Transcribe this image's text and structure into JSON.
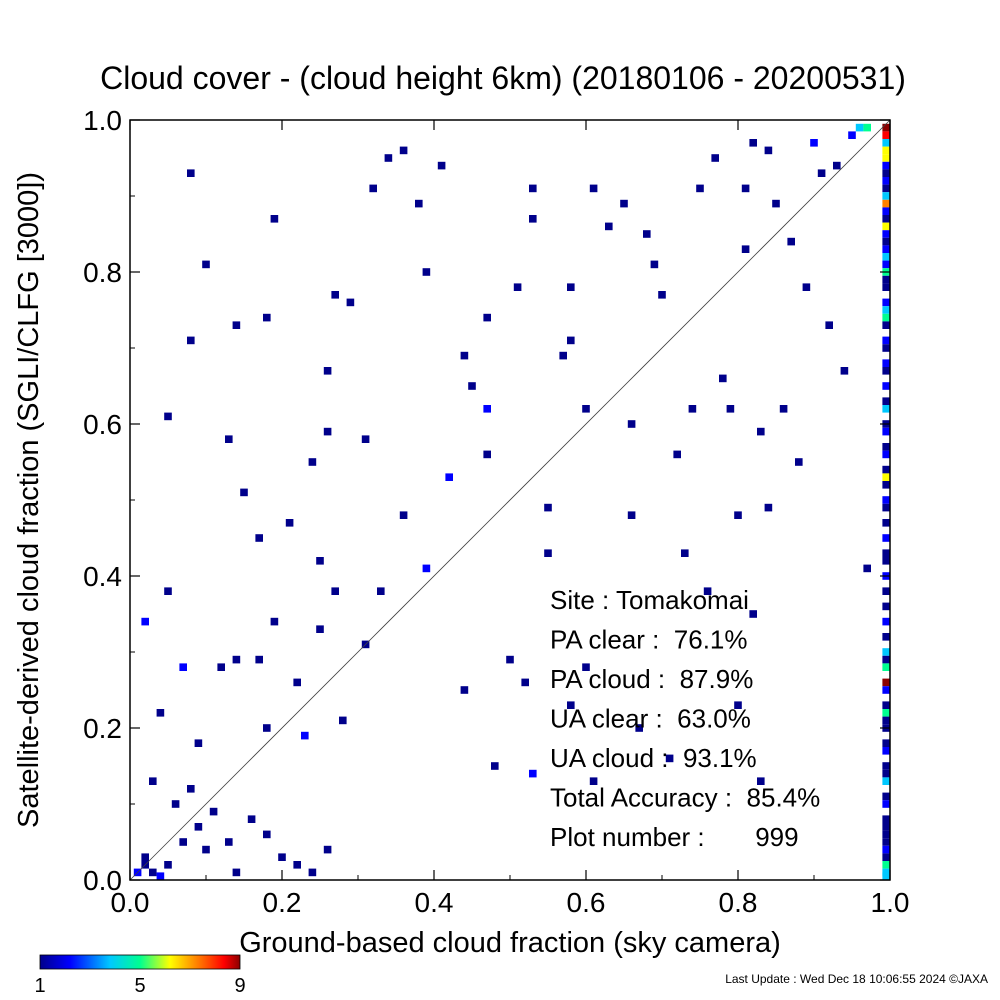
{
  "chart_data": {
    "type": "heatmap",
    "title": "Cloud cover - (cloud height 6km)  (20180106 - 20200531)",
    "xlabel": "Ground-based cloud fraction (sky camera)",
    "ylabel": "Satellite-derived cloud fraction (SGLI/CLFG [3000])",
    "xlim": [
      0.0,
      1.0
    ],
    "ylim": [
      0.0,
      1.0
    ],
    "xticks": [
      "0.0",
      "0.2",
      "0.4",
      "0.6",
      "0.8",
      "1.0"
    ],
    "yticks": [
      "0.0",
      "0.2",
      "0.4",
      "0.6",
      "0.8",
      "1.0"
    ],
    "reference_line": "1:1 diagonal",
    "grid": false,
    "colorbar": {
      "min": 1,
      "max": 9,
      "ticks": [
        "1",
        "5",
        "9"
      ],
      "colors": [
        "#00008b",
        "#0000ff",
        "#00c8ff",
        "#00ff90",
        "#ffff00",
        "#ff8000",
        "#ff0000",
        "#8b0000"
      ]
    },
    "cells": [
      {
        "x": 0.01,
        "y": 0.01,
        "count": 2
      },
      {
        "x": 0.02,
        "y": 0.02,
        "count": 1
      },
      {
        "x": 0.03,
        "y": 0.01,
        "count": 1
      },
      {
        "x": 0.02,
        "y": 0.03,
        "count": 1
      },
      {
        "x": 0.04,
        "y": 0.0,
        "count": 2
      },
      {
        "x": 0.05,
        "y": 0.02,
        "count": 1
      },
      {
        "x": 0.07,
        "y": 0.05,
        "count": 1
      },
      {
        "x": 0.09,
        "y": 0.07,
        "count": 1
      },
      {
        "x": 0.11,
        "y": 0.09,
        "count": 1
      },
      {
        "x": 0.13,
        "y": 0.05,
        "count": 1
      },
      {
        "x": 0.14,
        "y": 0.01,
        "count": 1
      },
      {
        "x": 0.16,
        "y": 0.08,
        "count": 1
      },
      {
        "x": 0.18,
        "y": 0.06,
        "count": 1
      },
      {
        "x": 0.2,
        "y": 0.03,
        "count": 1
      },
      {
        "x": 0.22,
        "y": 0.02,
        "count": 1
      },
      {
        "x": 0.24,
        "y": 0.01,
        "count": 1
      },
      {
        "x": 0.26,
        "y": 0.04,
        "count": 1
      },
      {
        "x": 0.03,
        "y": 0.13,
        "count": 1
      },
      {
        "x": 0.06,
        "y": 0.1,
        "count": 1
      },
      {
        "x": 0.08,
        "y": 0.12,
        "count": 1
      },
      {
        "x": 0.1,
        "y": 0.04,
        "count": 1
      },
      {
        "x": 0.02,
        "y": 0.34,
        "count": 2
      },
      {
        "x": 0.04,
        "y": 0.22,
        "count": 1
      },
      {
        "x": 0.05,
        "y": 0.38,
        "count": 1
      },
      {
        "x": 0.07,
        "y": 0.28,
        "count": 2
      },
      {
        "x": 0.09,
        "y": 0.18,
        "count": 1
      },
      {
        "x": 0.12,
        "y": 0.28,
        "count": 1
      },
      {
        "x": 0.14,
        "y": 0.29,
        "count": 1
      },
      {
        "x": 0.17,
        "y": 0.29,
        "count": 1
      },
      {
        "x": 0.18,
        "y": 0.2,
        "count": 1
      },
      {
        "x": 0.19,
        "y": 0.34,
        "count": 1
      },
      {
        "x": 0.22,
        "y": 0.26,
        "count": 1
      },
      {
        "x": 0.23,
        "y": 0.19,
        "count": 2
      },
      {
        "x": 0.25,
        "y": 0.42,
        "count": 1
      },
      {
        "x": 0.27,
        "y": 0.38,
        "count": 1
      },
      {
        "x": 0.25,
        "y": 0.33,
        "count": 1
      },
      {
        "x": 0.28,
        "y": 0.21,
        "count": 1
      },
      {
        "x": 0.31,
        "y": 0.31,
        "count": 1
      },
      {
        "x": 0.33,
        "y": 0.38,
        "count": 1
      },
      {
        "x": 0.36,
        "y": 0.48,
        "count": 1
      },
      {
        "x": 0.39,
        "y": 0.41,
        "count": 2
      },
      {
        "x": 0.42,
        "y": 0.53,
        "count": 2
      },
      {
        "x": 0.44,
        "y": 0.25,
        "count": 1
      },
      {
        "x": 0.47,
        "y": 0.62,
        "count": 2
      },
      {
        "x": 0.48,
        "y": 0.15,
        "count": 1
      },
      {
        "x": 0.5,
        "y": 0.29,
        "count": 1
      },
      {
        "x": 0.52,
        "y": 0.26,
        "count": 1
      },
      {
        "x": 0.53,
        "y": 0.14,
        "count": 2
      },
      {
        "x": 0.55,
        "y": 0.43,
        "count": 1
      },
      {
        "x": 0.58,
        "y": 0.23,
        "count": 1
      },
      {
        "x": 0.61,
        "y": 0.13,
        "count": 1
      },
      {
        "x": 0.08,
        "y": 0.93,
        "count": 1
      },
      {
        "x": 0.1,
        "y": 0.81,
        "count": 1
      },
      {
        "x": 0.08,
        "y": 0.71,
        "count": 1
      },
      {
        "x": 0.14,
        "y": 0.73,
        "count": 1
      },
      {
        "x": 0.18,
        "y": 0.74,
        "count": 1
      },
      {
        "x": 0.19,
        "y": 0.87,
        "count": 1
      },
      {
        "x": 0.13,
        "y": 0.58,
        "count": 1
      },
      {
        "x": 0.15,
        "y": 0.51,
        "count": 1
      },
      {
        "x": 0.05,
        "y": 0.61,
        "count": 1
      },
      {
        "x": 0.17,
        "y": 0.45,
        "count": 1
      },
      {
        "x": 0.21,
        "y": 0.47,
        "count": 1
      },
      {
        "x": 0.24,
        "y": 0.55,
        "count": 1
      },
      {
        "x": 0.26,
        "y": 0.59,
        "count": 1
      },
      {
        "x": 0.26,
        "y": 0.67,
        "count": 1
      },
      {
        "x": 0.27,
        "y": 0.77,
        "count": 1
      },
      {
        "x": 0.29,
        "y": 0.76,
        "count": 1
      },
      {
        "x": 0.31,
        "y": 0.58,
        "count": 1
      },
      {
        "x": 0.32,
        "y": 0.91,
        "count": 1
      },
      {
        "x": 0.34,
        "y": 0.95,
        "count": 1
      },
      {
        "x": 0.36,
        "y": 0.96,
        "count": 1
      },
      {
        "x": 0.38,
        "y": 0.89,
        "count": 1
      },
      {
        "x": 0.39,
        "y": 0.8,
        "count": 1
      },
      {
        "x": 0.41,
        "y": 0.94,
        "count": 1
      },
      {
        "x": 0.44,
        "y": 0.69,
        "count": 1
      },
      {
        "x": 0.45,
        "y": 0.65,
        "count": 1
      },
      {
        "x": 0.47,
        "y": 0.56,
        "count": 1
      },
      {
        "x": 0.47,
        "y": 0.74,
        "count": 1
      },
      {
        "x": 0.51,
        "y": 0.78,
        "count": 1
      },
      {
        "x": 0.53,
        "y": 0.91,
        "count": 1
      },
      {
        "x": 0.53,
        "y": 0.87,
        "count": 1
      },
      {
        "x": 0.55,
        "y": 0.49,
        "count": 1
      },
      {
        "x": 0.57,
        "y": 0.69,
        "count": 1
      },
      {
        "x": 0.58,
        "y": 0.78,
        "count": 1
      },
      {
        "x": 0.58,
        "y": 0.71,
        "count": 1
      },
      {
        "x": 0.6,
        "y": 0.62,
        "count": 1
      },
      {
        "x": 0.61,
        "y": 0.91,
        "count": 1
      },
      {
        "x": 0.63,
        "y": 0.86,
        "count": 1
      },
      {
        "x": 0.65,
        "y": 0.89,
        "count": 1
      },
      {
        "x": 0.66,
        "y": 0.6,
        "count": 1
      },
      {
        "x": 0.66,
        "y": 0.48,
        "count": 1
      },
      {
        "x": 0.68,
        "y": 0.85,
        "count": 1
      },
      {
        "x": 0.69,
        "y": 0.81,
        "count": 1
      },
      {
        "x": 0.7,
        "y": 0.77,
        "count": 1
      },
      {
        "x": 0.72,
        "y": 0.56,
        "count": 1
      },
      {
        "x": 0.73,
        "y": 0.43,
        "count": 1
      },
      {
        "x": 0.74,
        "y": 0.62,
        "count": 1
      },
      {
        "x": 0.75,
        "y": 0.91,
        "count": 1
      },
      {
        "x": 0.76,
        "y": 0.38,
        "count": 1
      },
      {
        "x": 0.77,
        "y": 0.95,
        "count": 1
      },
      {
        "x": 0.78,
        "y": 0.66,
        "count": 1
      },
      {
        "x": 0.79,
        "y": 0.62,
        "count": 1
      },
      {
        "x": 0.8,
        "y": 0.48,
        "count": 1
      },
      {
        "x": 0.81,
        "y": 0.91,
        "count": 1
      },
      {
        "x": 0.81,
        "y": 0.83,
        "count": 1
      },
      {
        "x": 0.82,
        "y": 0.97,
        "count": 1
      },
      {
        "x": 0.83,
        "y": 0.59,
        "count": 1
      },
      {
        "x": 0.84,
        "y": 0.96,
        "count": 1
      },
      {
        "x": 0.85,
        "y": 0.89,
        "count": 1
      },
      {
        "x": 0.86,
        "y": 0.62,
        "count": 1
      },
      {
        "x": 0.87,
        "y": 0.84,
        "count": 1
      },
      {
        "x": 0.88,
        "y": 0.55,
        "count": 1
      },
      {
        "x": 0.89,
        "y": 0.78,
        "count": 1
      },
      {
        "x": 0.9,
        "y": 0.97,
        "count": 2
      },
      {
        "x": 0.91,
        "y": 0.93,
        "count": 1
      },
      {
        "x": 0.92,
        "y": 0.73,
        "count": 1
      },
      {
        "x": 0.93,
        "y": 0.94,
        "count": 1
      },
      {
        "x": 0.94,
        "y": 0.67,
        "count": 1
      },
      {
        "x": 0.95,
        "y": 0.98,
        "count": 2
      },
      {
        "x": 0.96,
        "y": 0.99,
        "count": 3
      },
      {
        "x": 0.97,
        "y": 0.99,
        "count": 4
      },
      {
        "x": 0.97,
        "y": 0.41,
        "count": 1
      },
      {
        "x": 0.84,
        "y": 0.49,
        "count": 1
      },
      {
        "x": 0.82,
        "y": 0.35,
        "count": 1
      },
      {
        "x": 0.8,
        "y": 0.23,
        "count": 1
      },
      {
        "x": 0.83,
        "y": 0.13,
        "count": 1
      },
      {
        "x": 0.67,
        "y": 0.2,
        "count": 1
      },
      {
        "x": 0.71,
        "y": 0.16,
        "count": 1
      },
      {
        "x": 0.6,
        "y": 0.28,
        "count": 1
      }
    ],
    "right_edge_column": {
      "x": 1.0,
      "cells": [
        {
          "y": 0.99,
          "count": 9
        },
        {
          "y": 0.98,
          "count": 8
        },
        {
          "y": 0.97,
          "count": 3
        },
        {
          "y": 0.96,
          "count": 6
        },
        {
          "y": 0.95,
          "count": 5
        },
        {
          "y": 0.94,
          "count": 2
        },
        {
          "y": 0.93,
          "count": 1
        },
        {
          "y": 0.92,
          "count": 2
        },
        {
          "y": 0.91,
          "count": 1
        },
        {
          "y": 0.9,
          "count": 3
        },
        {
          "y": 0.89,
          "count": 7
        },
        {
          "y": 0.88,
          "count": 2
        },
        {
          "y": 0.87,
          "count": 1
        },
        {
          "y": 0.86,
          "count": 5
        },
        {
          "y": 0.85,
          "count": 2
        },
        {
          "y": 0.84,
          "count": 1
        },
        {
          "y": 0.83,
          "count": 2
        },
        {
          "y": 0.82,
          "count": 3
        },
        {
          "y": 0.81,
          "count": 2
        },
        {
          "y": 0.8,
          "count": 4
        },
        {
          "y": 0.79,
          "count": 1
        },
        {
          "y": 0.78,
          "count": 1
        },
        {
          "y": 0.76,
          "count": 2
        },
        {
          "y": 0.75,
          "count": 3
        },
        {
          "y": 0.74,
          "count": 4
        },
        {
          "y": 0.73,
          "count": 1
        },
        {
          "y": 0.71,
          "count": 2
        },
        {
          "y": 0.7,
          "count": 1
        },
        {
          "y": 0.68,
          "count": 2
        },
        {
          "y": 0.67,
          "count": 1
        },
        {
          "y": 0.65,
          "count": 2
        },
        {
          "y": 0.63,
          "count": 1
        },
        {
          "y": 0.62,
          "count": 3
        },
        {
          "y": 0.6,
          "count": 1
        },
        {
          "y": 0.59,
          "count": 2
        },
        {
          "y": 0.57,
          "count": 1
        },
        {
          "y": 0.56,
          "count": 2
        },
        {
          "y": 0.54,
          "count": 1
        },
        {
          "y": 0.53,
          "count": 6
        },
        {
          "y": 0.52,
          "count": 1
        },
        {
          "y": 0.5,
          "count": 2
        },
        {
          "y": 0.49,
          "count": 1
        },
        {
          "y": 0.47,
          "count": 1
        },
        {
          "y": 0.45,
          "count": 2
        },
        {
          "y": 0.43,
          "count": 1
        },
        {
          "y": 0.42,
          "count": 1
        },
        {
          "y": 0.4,
          "count": 2
        },
        {
          "y": 0.38,
          "count": 1
        },
        {
          "y": 0.36,
          "count": 1
        },
        {
          "y": 0.34,
          "count": 2
        },
        {
          "y": 0.32,
          "count": 1
        },
        {
          "y": 0.3,
          "count": 3
        },
        {
          "y": 0.29,
          "count": 1
        },
        {
          "y": 0.28,
          "count": 4
        },
        {
          "y": 0.26,
          "count": 9
        },
        {
          "y": 0.25,
          "count": 2
        },
        {
          "y": 0.23,
          "count": 1
        },
        {
          "y": 0.22,
          "count": 4
        },
        {
          "y": 0.21,
          "count": 1
        },
        {
          "y": 0.2,
          "count": 1
        },
        {
          "y": 0.18,
          "count": 1
        },
        {
          "y": 0.17,
          "count": 2
        },
        {
          "y": 0.15,
          "count": 1
        },
        {
          "y": 0.14,
          "count": 1
        },
        {
          "y": 0.13,
          "count": 3
        },
        {
          "y": 0.11,
          "count": 1
        },
        {
          "y": 0.1,
          "count": 2
        },
        {
          "y": 0.08,
          "count": 1
        },
        {
          "y": 0.07,
          "count": 1
        },
        {
          "y": 0.06,
          "count": 1
        },
        {
          "y": 0.05,
          "count": 1
        },
        {
          "y": 0.04,
          "count": 2
        },
        {
          "y": 0.03,
          "count": 1
        },
        {
          "y": 0.02,
          "count": 4
        },
        {
          "y": 0.01,
          "count": 3
        },
        {
          "y": 0.0,
          "count": 3
        }
      ]
    }
  },
  "stats": [
    {
      "label": "Site : Tomakomai"
    },
    {
      "label": "PA clear :  76.1%"
    },
    {
      "label": "PA cloud :  87.9%"
    },
    {
      "label": "UA clear :  63.0%"
    },
    {
      "label": "UA cloud :  93.1%"
    },
    {
      "label": "Total Accuracy :  85.4%"
    },
    {
      "label": "Plot number :       999"
    }
  ],
  "footer": "Last Update : Wed Dec 18 10:06:55 2024  ©JAXA"
}
